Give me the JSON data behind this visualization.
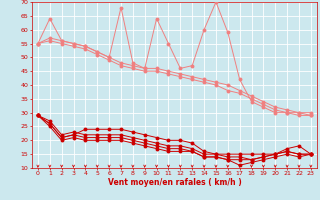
{
  "x": [
    0,
    1,
    2,
    3,
    4,
    5,
    6,
    7,
    8,
    9,
    10,
    11,
    12,
    13,
    14,
    15,
    16,
    17,
    18,
    19,
    20,
    21,
    22,
    23
  ],
  "series_light1": [
    55,
    64,
    56,
    55,
    54,
    52,
    50,
    68,
    48,
    46,
    64,
    55,
    46,
    47,
    60,
    70,
    59,
    42,
    34,
    32,
    30,
    30,
    30,
    30
  ],
  "series_light2": [
    55,
    57,
    56,
    55,
    54,
    52,
    50,
    48,
    47,
    46,
    46,
    45,
    44,
    43,
    42,
    41,
    40,
    38,
    36,
    34,
    32,
    31,
    30,
    29
  ],
  "series_light3": [
    55,
    56,
    55,
    54,
    53,
    51,
    49,
    47,
    46,
    45,
    45,
    44,
    43,
    42,
    41,
    40,
    38,
    37,
    35,
    33,
    31,
    30,
    29,
    29
  ],
  "series_dark1": [
    29,
    26,
    21,
    22,
    24,
    24,
    24,
    24,
    23,
    22,
    21,
    20,
    20,
    19,
    16,
    15,
    15,
    15,
    15,
    15,
    15,
    17,
    18,
    15
  ],
  "series_dark2": [
    29,
    27,
    22,
    23,
    22,
    22,
    22,
    22,
    21,
    20,
    19,
    18,
    18,
    17,
    15,
    15,
    14,
    14,
    13,
    14,
    15,
    16,
    15,
    15
  ],
  "series_dark3": [
    29,
    26,
    21,
    22,
    21,
    21,
    21,
    21,
    20,
    19,
    18,
    17,
    17,
    16,
    14,
    14,
    13,
    11,
    12,
    13,
    14,
    15,
    14,
    15
  ],
  "series_dark4": [
    29,
    25,
    20,
    21,
    20,
    20,
    20,
    20,
    19,
    18,
    17,
    16,
    16,
    16,
    14,
    14,
    13,
    13,
    13,
    14,
    15,
    16,
    15,
    15
  ],
  "color_light": "#f08080",
  "color_dark": "#cc0000",
  "bg_color": "#cce8ee",
  "grid_color": "#ffffff",
  "xlabel": "Vent moyen/en rafales ( km/h )",
  "ylim": [
    10,
    70
  ],
  "xlim_min": -0.5,
  "xlim_max": 23.5,
  "yticks": [
    10,
    15,
    20,
    25,
    30,
    35,
    40,
    45,
    50,
    55,
    60,
    65,
    70
  ],
  "xticks": [
    0,
    1,
    2,
    3,
    4,
    5,
    6,
    7,
    8,
    9,
    10,
    11,
    12,
    13,
    14,
    15,
    16,
    17,
    18,
    19,
    20,
    21,
    22,
    23
  ],
  "marker_size": 1.8,
  "line_width": 0.7,
  "tick_fontsize": 4.5,
  "xlabel_fontsize": 5.5
}
